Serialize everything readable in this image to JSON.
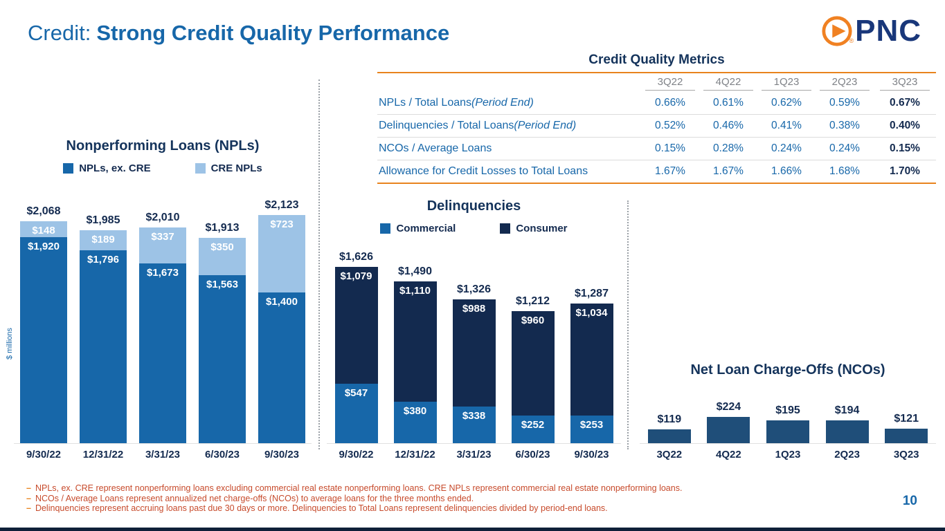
{
  "page": {
    "title_prefix": "Credit:",
    "title_main": "Strong Credit Quality Performance",
    "logo_text": "PNC",
    "logo_reg": "®",
    "page_number": "10",
    "footnote_bullet": "–"
  },
  "colors": {
    "blue": "#1767A9",
    "navy": "#132A4F",
    "light_blue": "#9DC3E6",
    "nco_blue": "#1F4E79",
    "orange": "#E8831D",
    "header_gray": "#7F8287",
    "footnote_red": "#C74A2B"
  },
  "metrics_table": {
    "title": "Credit Quality Metrics",
    "columns": [
      "3Q22",
      "4Q22",
      "1Q23",
      "2Q23",
      "3Q23"
    ],
    "rows": [
      {
        "label": "NPLs / Total Loans",
        "label_note": "(Period End)",
        "values": [
          "0.66%",
          "0.61%",
          "0.62%",
          "0.59%",
          "0.67%"
        ]
      },
      {
        "label": "Delinquencies / Total Loans",
        "label_note": "(Period End)",
        "values": [
          "0.52%",
          "0.46%",
          "0.41%",
          "0.38%",
          "0.40%"
        ]
      },
      {
        "label": "NCOs / Average Loans",
        "label_note": "",
        "values": [
          "0.15%",
          "0.28%",
          "0.24%",
          "0.24%",
          "0.15%"
        ]
      },
      {
        "label": "Allowance for Credit Losses to Total Loans",
        "label_note": "",
        "values": [
          "1.67%",
          "1.67%",
          "1.66%",
          "1.68%",
          "1.70%"
        ]
      }
    ]
  },
  "chart_data": [
    {
      "type": "bar",
      "stacked": true,
      "title": "Nonperforming Loans (NPLs)",
      "ylabel": "$ millions",
      "categories": [
        "9/30/22",
        "12/31/22",
        "3/31/23",
        "6/30/23",
        "9/30/23"
      ],
      "series": [
        {
          "name": "NPLs, ex. CRE",
          "color_key": "blue",
          "values": [
            1920,
            1796,
            1673,
            1563,
            1400
          ],
          "labels": [
            "$1,920",
            "$1,796",
            "$1,673",
            "$1,563",
            "$1,400"
          ]
        },
        {
          "name": "CRE NPLs",
          "color_key": "light_blue",
          "values": [
            148,
            189,
            337,
            350,
            723
          ],
          "labels": [
            "$148",
            "$189",
            "$337",
            "$350",
            "$723"
          ]
        }
      ],
      "totals": [
        2068,
        1985,
        2010,
        1913,
        2123
      ],
      "total_labels": [
        "$2,068",
        "$1,985",
        "$2,010",
        "$1,913",
        "$2,123"
      ],
      "ylim": [
        0,
        2200
      ],
      "legend_position": "top",
      "grid": false
    },
    {
      "type": "bar",
      "stacked": true,
      "title": "Delinquencies",
      "categories": [
        "9/30/22",
        "12/31/22",
        "3/31/23",
        "6/30/23",
        "9/30/23"
      ],
      "series": [
        {
          "name": "Commercial",
          "color_key": "blue",
          "values": [
            547,
            380,
            338,
            252,
            253
          ],
          "labels": [
            "$547",
            "$380",
            "$338",
            "$252",
            "$253"
          ]
        },
        {
          "name": "Consumer",
          "color_key": "navy",
          "values": [
            1079,
            1110,
            988,
            960,
            1034
          ],
          "labels": [
            "$1,079",
            "$1,110",
            "$988",
            "$960",
            "$1,034"
          ]
        }
      ],
      "totals": [
        1626,
        1490,
        1326,
        1212,
        1287
      ],
      "total_labels": [
        "$1,626",
        "$1,490",
        "$1,326",
        "$1,212",
        "$1,287"
      ],
      "ylim": [
        0,
        1700
      ],
      "legend_position": "top",
      "grid": false
    },
    {
      "type": "bar",
      "stacked": false,
      "title": "Net Loan Charge-Offs (NCOs)",
      "color_key": "nco_blue",
      "categories": [
        "3Q22",
        "4Q22",
        "1Q23",
        "2Q23",
        "3Q23"
      ],
      "values": [
        119,
        224,
        195,
        194,
        121
      ],
      "labels": [
        "$119",
        "$224",
        "$195",
        "$194",
        "$121"
      ],
      "ylim": [
        0,
        240
      ],
      "grid": false
    }
  ],
  "footnotes": [
    "NPLs, ex. CRE represent nonperforming loans excluding commercial real estate nonperforming loans. CRE NPLs represent commercial real estate nonperforming loans.",
    "NCOs / Average Loans represent annualized net charge-offs (NCOs) to average loans for the three months ended.",
    "Delinquencies represent accruing loans past due 30 days or more. Delinquencies to Total Loans represent delinquencies divided by period-end loans."
  ]
}
